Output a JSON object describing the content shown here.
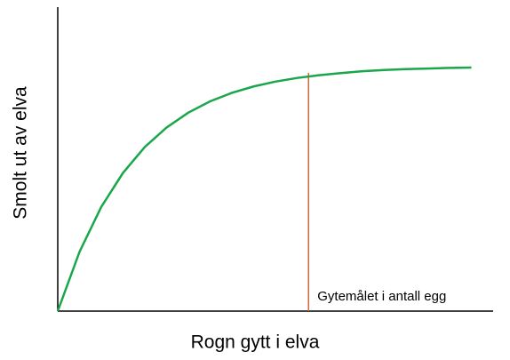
{
  "chart_data": {
    "type": "line",
    "x_label": "Rogn gytt i elva",
    "y_label": "Smolt ut av elva",
    "xlim": [
      0,
      100
    ],
    "ylim": [
      0,
      100
    ],
    "x": [
      0,
      5,
      10,
      15,
      20,
      25,
      30,
      35,
      40,
      45,
      50,
      55,
      60,
      65,
      70,
      75,
      80,
      85,
      90,
      95
    ],
    "series": [
      {
        "color": "#1aa64a",
        "values": [
          0,
          19.5,
          34.3,
          45.5,
          54.0,
          60.4,
          65.3,
          69.0,
          71.8,
          73.9,
          75.5,
          76.7,
          77.6,
          78.3,
          78.9,
          79.3,
          79.6,
          79.8,
          80.0,
          80.1
        ]
      }
    ],
    "annotation": {
      "text": "Gytemålet i antall egg",
      "x": 57.6,
      "y": 78.4,
      "color": "#d2693c"
    }
  }
}
